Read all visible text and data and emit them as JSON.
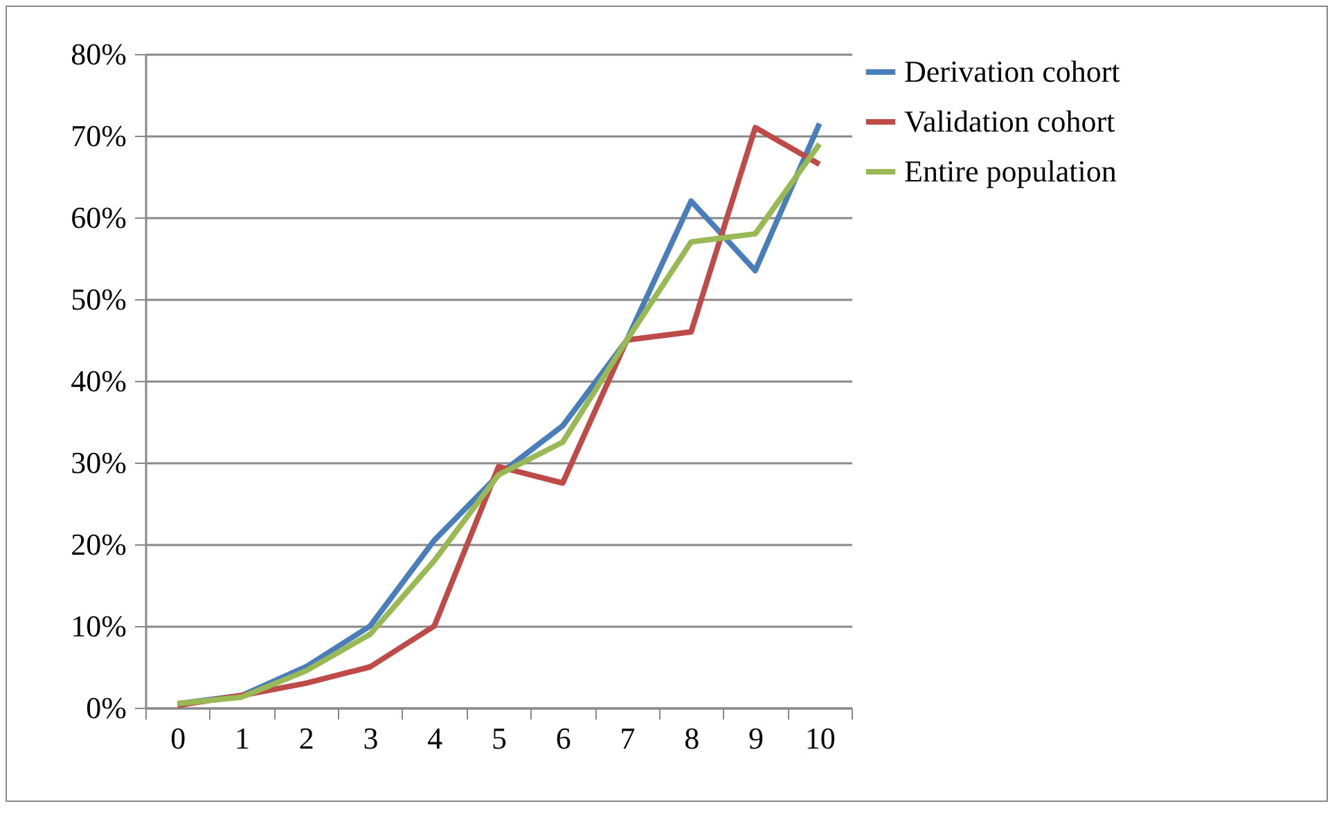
{
  "chart_data": {
    "type": "line",
    "categories": [
      "0",
      "1",
      "2",
      "3",
      "4",
      "5",
      "6",
      "7",
      "8",
      "9",
      "10"
    ],
    "series": [
      {
        "name": "Derivation cohort",
        "color": "#4a7ebb",
        "values": [
          0.5,
          1.5,
          5,
          10,
          20.5,
          28.5,
          34.5,
          45,
          62,
          53.5,
          71.5
        ]
      },
      {
        "name": "Validation cohort",
        "color": "#be4b48",
        "values": [
          0.3,
          1.5,
          3,
          5,
          10,
          29.5,
          27.5,
          45,
          46,
          71,
          66.5
        ]
      },
      {
        "name": "Entire population",
        "color": "#98b954",
        "values": [
          0.5,
          1.3,
          4.5,
          9,
          18,
          28.5,
          32.5,
          45,
          57,
          58,
          69
        ]
      }
    ],
    "ylim": [
      0,
      80
    ],
    "yticks": [
      {
        "value": 0,
        "label": "0%"
      },
      {
        "value": 10,
        "label": "10%"
      },
      {
        "value": 20,
        "label": "20%"
      },
      {
        "value": 30,
        "label": "30%"
      },
      {
        "value": 40,
        "label": "40%"
      },
      {
        "value": 50,
        "label": "50%"
      },
      {
        "value": 60,
        "label": "60%"
      },
      {
        "value": 70,
        "label": "70%"
      },
      {
        "value": 80,
        "label": "80%"
      }
    ],
    "grid": "y",
    "legend": "right",
    "marker": "none",
    "line_style": "solid"
  }
}
